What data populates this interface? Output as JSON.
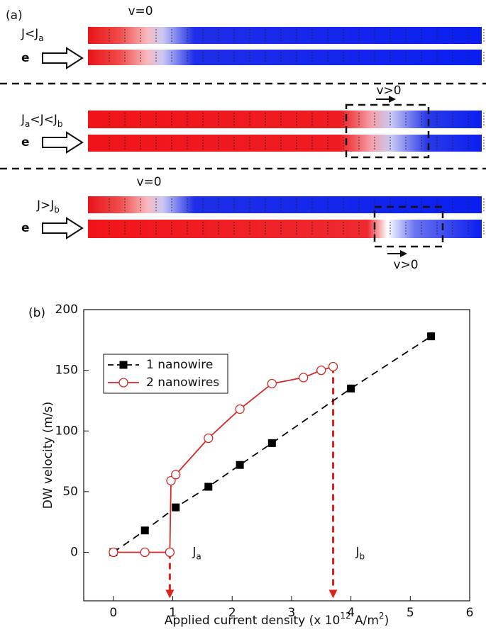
{
  "panel_a": {
    "label": "(a)",
    "electron": "e",
    "rows": [
      {
        "label": [
          "J<J",
          "a"
        ],
        "annotations": [
          "v=0"
        ]
      },
      {
        "label": [
          "J",
          "a",
          "<J<J",
          "b"
        ],
        "annotations": [
          "v>0"
        ]
      },
      {
        "label": [
          "J>J",
          "b"
        ],
        "annotations": [
          "v=0",
          "v>0"
        ]
      }
    ]
  },
  "chart_data": {
    "type": "line",
    "label": "(b)",
    "ylabel": "DW velocity (m/s)",
    "xlabel": [
      "Applied current density (x 10",
      "12",
      " A/m",
      "2",
      ")"
    ],
    "xlim": [
      -0.5,
      6
    ],
    "xticks": [
      0,
      1,
      2,
      3,
      4,
      5,
      6
    ],
    "ylim": [
      -40,
      200
    ],
    "yticks": [
      0,
      50,
      100,
      150,
      200
    ],
    "legend": "upper left",
    "grid": false,
    "series": [
      {
        "name": "1 nanowire",
        "color": "#000000",
        "marker": "square",
        "dashed": true,
        "x": [
          0,
          0.53,
          1.05,
          1.6,
          2.13,
          2.67,
          4.0,
          5.35
        ],
        "values": [
          0,
          18,
          37,
          54,
          72,
          90,
          135,
          178
        ]
      },
      {
        "name": "2 nanowires",
        "color": "#d42a25",
        "marker": "circle",
        "dashed": false,
        "x": [
          0,
          0.53,
          0.95,
          0.97,
          1.05,
          1.6,
          2.13,
          2.67,
          3.2,
          3.5,
          3.7
        ],
        "values": [
          0,
          0,
          0,
          59,
          64,
          94,
          118,
          139,
          144,
          150,
          153
        ]
      }
    ],
    "markers": [
      {
        "x": 0.95,
        "y": 0,
        "label": [
          "J",
          "a"
        ]
      },
      {
        "x": 3.7,
        "y": 153,
        "label": [
          "J",
          "b"
        ]
      }
    ]
  }
}
